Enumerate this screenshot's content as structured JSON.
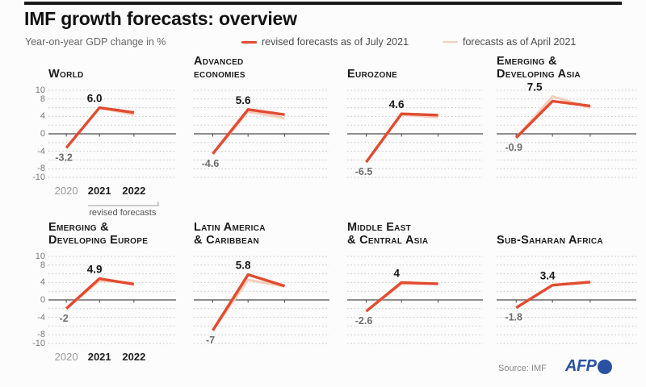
{
  "header": {
    "title": "IMF growth forecasts: overview",
    "subtitle": "Year-on-year GDP change in %"
  },
  "legend": [
    {
      "label": "revised forecasts as of July 2021",
      "color": "#e24b30"
    },
    {
      "label": "forecasts as of April 2021",
      "color": "#f8ccba"
    }
  ],
  "axis": {
    "ylim": [
      -10,
      10
    ],
    "grid_step": 2,
    "ytick_labels": [
      "10",
      "8",
      "4",
      "0",
      "-4",
      "-8",
      "-10"
    ],
    "x_categories": [
      "2020",
      "2021",
      "2022"
    ],
    "bracket_label": "revised forecasts"
  },
  "chart_data": [
    {
      "type": "line",
      "title_lines": [
        "World"
      ],
      "ylim": [
        -10,
        10
      ],
      "x": [
        "2020",
        "2021",
        "2022"
      ],
      "series": [
        {
          "name": "forecasts as of April 2021",
          "color": "#f8ccba",
          "values": [
            -3.2,
            6.0,
            4.4
          ]
        },
        {
          "name": "revised forecasts as of July 2021",
          "color": "#e24b30",
          "values": [
            -3.2,
            6.0,
            4.9
          ]
        }
      ],
      "annotations": [
        {
          "x": "2020",
          "text": "-3.2",
          "style": "muted"
        },
        {
          "x": "2021",
          "text": "6.0",
          "style": "strong"
        }
      ]
    },
    {
      "type": "line",
      "title_lines": [
        "Advanced",
        "economies"
      ],
      "ylim": [
        -10,
        10
      ],
      "x": [
        "2020",
        "2021",
        "2022"
      ],
      "series": [
        {
          "name": "forecasts as of April 2021",
          "color": "#f8ccba",
          "values": [
            -4.6,
            5.1,
            3.6
          ]
        },
        {
          "name": "revised forecasts as of July 2021",
          "color": "#e24b30",
          "values": [
            -4.6,
            5.6,
            4.4
          ]
        }
      ],
      "annotations": [
        {
          "x": "2020",
          "text": "-4.6",
          "style": "muted"
        },
        {
          "x": "2021",
          "text": "5.6",
          "style": "strong"
        }
      ]
    },
    {
      "type": "line",
      "title_lines": [
        "Eurozone"
      ],
      "ylim": [
        -10,
        10
      ],
      "x": [
        "2020",
        "2021",
        "2022"
      ],
      "series": [
        {
          "name": "forecasts as of April 2021",
          "color": "#f8ccba",
          "values": [
            -6.5,
            4.4,
            3.8
          ]
        },
        {
          "name": "revised forecasts as of July 2021",
          "color": "#e24b30",
          "values": [
            -6.5,
            4.6,
            4.3
          ]
        }
      ],
      "annotations": [
        {
          "x": "2020",
          "text": "-6.5",
          "style": "muted"
        },
        {
          "x": "2021",
          "text": "4.6",
          "style": "strong"
        }
      ]
    },
    {
      "type": "line",
      "title_lines": [
        "Emerging &",
        "Developing Asia"
      ],
      "ylim": [
        -10,
        10
      ],
      "x": [
        "2020",
        "2021",
        "2022"
      ],
      "series": [
        {
          "name": "forecasts as of April 2021",
          "color": "#f8ccba",
          "values": [
            -0.9,
            8.6,
            6.0
          ]
        },
        {
          "name": "revised forecasts as of July 2021",
          "color": "#e24b30",
          "values": [
            -0.9,
            7.5,
            6.4
          ]
        }
      ],
      "annotations": [
        {
          "x": "2020",
          "text": "-0.9",
          "style": "muted"
        },
        {
          "x": "2021",
          "text": "7.5",
          "style": "strong"
        }
      ]
    },
    {
      "type": "line",
      "title_lines": [
        "Emerging &",
        "Developing Europe"
      ],
      "ylim": [
        -10,
        10
      ],
      "x": [
        "2020",
        "2021",
        "2022"
      ],
      "series": [
        {
          "name": "forecasts as of April 2021",
          "color": "#f8ccba",
          "values": [
            -2.0,
            4.4,
            3.9
          ]
        },
        {
          "name": "revised forecasts as of July 2021",
          "color": "#e24b30",
          "values": [
            -2.0,
            4.9,
            3.6
          ]
        }
      ],
      "annotations": [
        {
          "x": "2020",
          "text": "-2",
          "style": "muted"
        },
        {
          "x": "2021",
          "text": "4.9",
          "style": "strong"
        }
      ]
    },
    {
      "type": "line",
      "title_lines": [
        "Latin America",
        "& Caribbean"
      ],
      "ylim": [
        -10,
        10
      ],
      "x": [
        "2020",
        "2021",
        "2022"
      ],
      "series": [
        {
          "name": "forecasts as of April 2021",
          "color": "#f8ccba",
          "values": [
            -7.0,
            4.6,
            3.1
          ]
        },
        {
          "name": "revised forecasts as of July 2021",
          "color": "#e24b30",
          "values": [
            -7.0,
            5.8,
            3.2
          ]
        }
      ],
      "annotations": [
        {
          "x": "2020",
          "text": "-7",
          "style": "muted"
        },
        {
          "x": "2021",
          "text": "5.8",
          "style": "strong"
        }
      ]
    },
    {
      "type": "line",
      "title_lines": [
        "Middle East",
        "& Central Asia"
      ],
      "ylim": [
        -10,
        10
      ],
      "x": [
        "2020",
        "2021",
        "2022"
      ],
      "series": [
        {
          "name": "forecasts as of April 2021",
          "color": "#f8ccba",
          "values": [
            -2.6,
            3.7,
            3.8
          ]
        },
        {
          "name": "revised forecasts as of July 2021",
          "color": "#e24b30",
          "values": [
            -2.6,
            4.0,
            3.7
          ]
        }
      ],
      "annotations": [
        {
          "x": "2020",
          "text": "-2.6",
          "style": "muted"
        },
        {
          "x": "2021",
          "text": "4",
          "style": "strong"
        }
      ]
    },
    {
      "type": "line",
      "title_lines": [
        "Sub-Saharan Africa"
      ],
      "ylim": [
        -10,
        10
      ],
      "x": [
        "2020",
        "2021",
        "2022"
      ],
      "series": [
        {
          "name": "forecasts as of April 2021",
          "color": "#f8ccba",
          "values": [
            -1.8,
            3.4,
            4.0
          ]
        },
        {
          "name": "revised forecasts as of July 2021",
          "color": "#e24b30",
          "values": [
            -1.8,
            3.4,
            4.1
          ]
        }
      ],
      "annotations": [
        {
          "x": "2020",
          "text": "-1.8",
          "style": "muted"
        },
        {
          "x": "2021",
          "text": "3.4",
          "style": "strong"
        }
      ]
    }
  ],
  "footer": {
    "source": "Source: IMF",
    "logo": "AFP"
  }
}
